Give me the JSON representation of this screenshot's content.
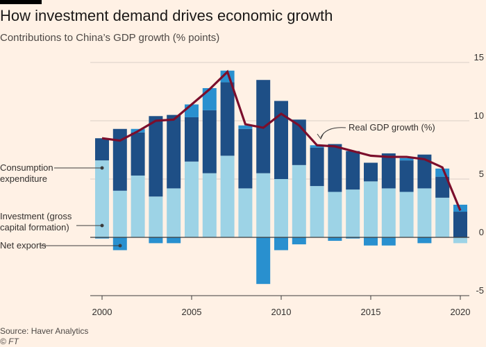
{
  "title": "How investment demand drives economic growth",
  "subtitle": "Contributions to China’s GDP growth (% points)",
  "source": "Source: Haver Analytics",
  "credit": "© FT",
  "colors": {
    "background": "#fff1e5",
    "consumption": "#9dd3e6",
    "investment": "#1e4f86",
    "net_exports": "#2990cf",
    "gdp_line": "#7b0e2c",
    "grid": "#d8cfc6",
    "zero_line": "#3b3b3b",
    "label": "#33302e"
  },
  "chart_data": {
    "type": "bar",
    "stacked": true,
    "x": [
      2000,
      2001,
      2002,
      2003,
      2004,
      2005,
      2006,
      2007,
      2008,
      2009,
      2010,
      2011,
      2012,
      2013,
      2014,
      2015,
      2016,
      2017,
      2018,
      2019,
      2020
    ],
    "series": [
      {
        "name": "Consumption expenditure",
        "color_key": "consumption",
        "values": [
          6.6,
          4.0,
          5.3,
          3.5,
          4.2,
          6.5,
          5.5,
          7.0,
          4.2,
          5.5,
          5.0,
          6.2,
          4.4,
          3.9,
          4.1,
          4.8,
          4.2,
          3.9,
          4.2,
          3.4,
          -0.5
        ]
      },
      {
        "name": "Investment (gross capital formation)",
        "color_key": "investment",
        "values": [
          1.9,
          5.3,
          3.7,
          6.9,
          6.3,
          3.8,
          5.4,
          6.3,
          5.1,
          8.0,
          6.7,
          3.9,
          3.3,
          4.1,
          3.3,
          1.6,
          3.0,
          2.7,
          2.9,
          1.8,
          2.2
        ]
      },
      {
        "name": "Net exports",
        "color_key": "net_exports",
        "values": [
          -0.1,
          -1.1,
          0.3,
          -0.5,
          -0.5,
          1.1,
          1.9,
          1.0,
          0.3,
          -4.0,
          -1.1,
          -0.6,
          0.2,
          -0.3,
          -0.1,
          -0.7,
          -0.7,
          0.2,
          -0.5,
          0.7,
          0.6
        ]
      }
    ],
    "line": {
      "name": "Real GDP growth (%)",
      "color_key": "gdp_line",
      "values": [
        8.5,
        8.3,
        9.1,
        10.0,
        10.1,
        11.4,
        12.7,
        14.2,
        9.7,
        9.4,
        10.6,
        9.6,
        7.9,
        7.8,
        7.4,
        7.0,
        6.9,
        6.9,
        6.7,
        6.0,
        2.3
      ]
    },
    "y_axis": {
      "min": -5,
      "max": 15,
      "ticks": [
        "15",
        "10",
        "5",
        "0",
        "-5"
      ],
      "tick_values": [
        15,
        10,
        5,
        0,
        -5
      ],
      "position": "right"
    },
    "x_axis": {
      "ticks": [
        "2000",
        "2005",
        "2010",
        "2015",
        "2020"
      ],
      "tick_values": [
        2000,
        2005,
        2010,
        2015,
        2020
      ]
    },
    "grid": true,
    "labels": {
      "consumption": [
        "Consumption",
        "expenditure"
      ],
      "investment": [
        "Investment (gross",
        "capital formation)"
      ],
      "net_exports": "Net exports",
      "gdp": "Real GDP growth (%)"
    }
  }
}
